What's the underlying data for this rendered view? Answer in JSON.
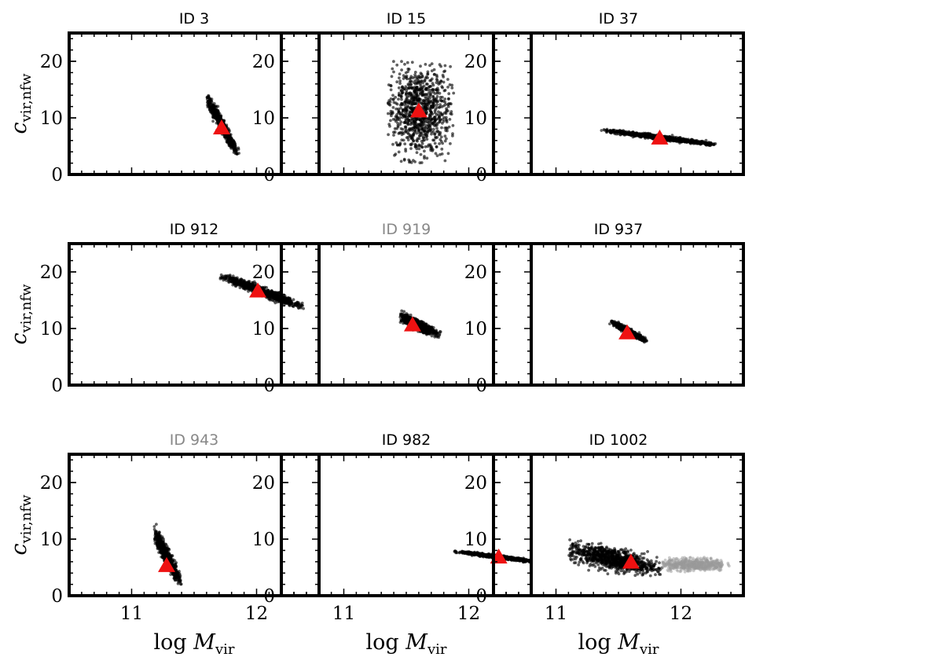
{
  "figure": {
    "xlabel_prefix": "log",
    "xlabel_var": "M",
    "xlabel_sub": "vir",
    "ylabel_var": "c",
    "ylabel_sub": "vir,nfw",
    "point_color": "#000000",
    "marker_color": "#ee1111",
    "muted_title_color": "#888888"
  },
  "chart_data": [
    {
      "type": "scatter",
      "title": "ID 3",
      "title_muted": false,
      "xlim": [
        10.5,
        12.5
      ],
      "ylim": [
        0,
        25
      ],
      "xticks": [
        11,
        12
      ],
      "yticks": [
        0,
        10,
        20
      ],
      "xlabel": "log Mvir",
      "ylabel": "cvir,nfw",
      "cloud": {
        "center": [
          11.72,
          8.8
        ],
        "x_range": [
          11.6,
          11.88
        ],
        "y_range": [
          3.5,
          14
        ],
        "slope": -40,
        "n": 700
      },
      "best_fit": [
        11.72,
        8.2
      ]
    },
    {
      "type": "scatter",
      "title": "ID 15",
      "title_muted": false,
      "xlim": [
        10.5,
        12.5
      ],
      "ylim": [
        0,
        25
      ],
      "xticks": [
        11,
        12
      ],
      "yticks": [
        0,
        10,
        20
      ],
      "xlabel": "log Mvir",
      "ylabel": "cvir,nfw",
      "cloud": {
        "center": [
          11.6,
          11
        ],
        "x_range": [
          11.35,
          11.88
        ],
        "y_range": [
          2,
          20
        ],
        "slope": 0,
        "n": 900
      },
      "best_fit": [
        11.6,
        11.2
      ]
    },
    {
      "type": "scatter",
      "title": "ID 37",
      "title_muted": false,
      "xlim": [
        10.5,
        12.5
      ],
      "ylim": [
        0,
        25
      ],
      "xticks": [
        11,
        12
      ],
      "yticks": [
        0,
        10,
        20
      ],
      "xlabel": "log Mvir",
      "ylabel": "cvir,nfw",
      "cloud": {
        "center": [
          11.85,
          6.5
        ],
        "x_range": [
          11.35,
          12.28
        ],
        "y_range": [
          5,
          8
        ],
        "slope": -2.8,
        "n": 900
      },
      "best_fit": [
        11.83,
        6.4
      ]
    },
    {
      "type": "scatter",
      "title": "ID 912",
      "title_muted": false,
      "xlim": [
        10.5,
        12.5
      ],
      "ylim": [
        0,
        25
      ],
      "xticks": [
        11,
        12
      ],
      "yticks": [
        0,
        10,
        20
      ],
      "xlabel": "log Mvir",
      "ylabel": "cvir,nfw",
      "cloud": {
        "center": [
          12.05,
          16.5
        ],
        "x_range": [
          11.7,
          12.38
        ],
        "y_range": [
          13.5,
          19.5
        ],
        "slope": -8.5,
        "n": 900
      },
      "best_fit": [
        12.01,
        16.6
      ]
    },
    {
      "type": "scatter",
      "title": "ID 919",
      "title_muted": true,
      "xlim": [
        10.5,
        12.5
      ],
      "ylim": [
        0,
        25
      ],
      "xticks": [
        11,
        12
      ],
      "yticks": [
        0,
        10,
        20
      ],
      "xlabel": "log Mvir",
      "ylabel": "cvir,nfw",
      "cloud": {
        "center": [
          11.58,
          10.8
        ],
        "x_range": [
          11.45,
          11.78
        ],
        "y_range": [
          8.2,
          13.2
        ],
        "slope": -10,
        "n": 700
      },
      "best_fit": [
        11.55,
        10.6
      ]
    },
    {
      "type": "scatter",
      "title": "ID 937",
      "title_muted": false,
      "xlim": [
        10.5,
        12.5
      ],
      "ylim": [
        0,
        25
      ],
      "xticks": [
        11,
        12
      ],
      "yticks": [
        0,
        10,
        20
      ],
      "xlabel": "log Mvir",
      "ylabel": "cvir,nfw",
      "cloud": {
        "center": [
          11.58,
          9.5
        ],
        "x_range": [
          11.43,
          11.73
        ],
        "y_range": [
          7.5,
          11.5
        ],
        "slope": -12,
        "n": 600
      },
      "best_fit": [
        11.57,
        9.2
      ]
    },
    {
      "type": "scatter",
      "title": "ID 943",
      "title_muted": true,
      "xlim": [
        10.5,
        12.5
      ],
      "ylim": [
        0,
        25
      ],
      "xticks": [
        11,
        12
      ],
      "yticks": [
        0,
        10,
        20
      ],
      "xlabel": "log Mvir",
      "ylabel": "cvir,nfw",
      "cloud": {
        "center": [
          11.28,
          7
        ],
        "x_range": [
          11.18,
          11.4
        ],
        "y_range": [
          2,
          14
        ],
        "slope": -40,
        "n": 700
      },
      "best_fit": [
        11.28,
        5.3
      ]
    },
    {
      "type": "scatter",
      "title": "ID 982",
      "title_muted": false,
      "xlim": [
        10.5,
        12.5
      ],
      "ylim": [
        0,
        25
      ],
      "xticks": [
        11,
        12
      ],
      "yticks": [
        0,
        10,
        20
      ],
      "xlabel": "log Mvir",
      "ylabel": "cvir,nfw",
      "cloud": {
        "center": [
          12.22,
          6.9
        ],
        "x_range": [
          11.88,
          12.5
        ],
        "y_range": [
          5.8,
          8
        ],
        "slope": -2.8,
        "n": 800
      },
      "best_fit": [
        12.24,
        6.8
      ]
    },
    {
      "type": "scatter",
      "title": "ID 1002",
      "title_muted": false,
      "xlim": [
        10.5,
        12.5
      ],
      "ylim": [
        0,
        25
      ],
      "xticks": [
        11,
        12
      ],
      "yticks": [
        0,
        10,
        20
      ],
      "xlabel": "log Mvir",
      "ylabel": "cvir,nfw",
      "cloud": {
        "center": [
          11.45,
          6.5
        ],
        "x_range": [
          11.1,
          11.85
        ],
        "y_range": [
          3.5,
          11
        ],
        "slope": -4.5,
        "n": 900
      },
      "cloud_faded": {
        "center": [
          12.1,
          5.5
        ],
        "x_range": [
          11.85,
          12.4
        ],
        "y_range": [
          4.2,
          6.8
        ],
        "slope": 0,
        "n": 500
      },
      "best_fit": [
        11.6,
        5.9
      ]
    }
  ]
}
